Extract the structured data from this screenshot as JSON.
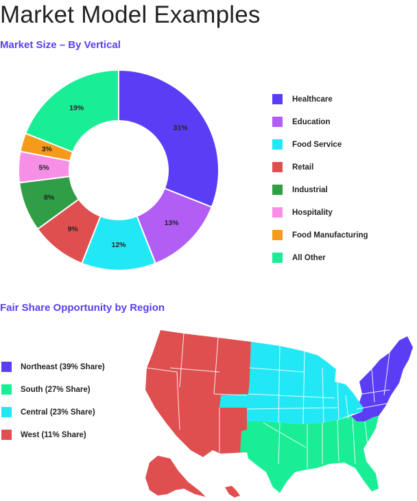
{
  "title": "Market Model Examples",
  "chart_data": [
    {
      "type": "pie",
      "title": "Market Size – By Vertical",
      "donut": true,
      "legend_position": "right",
      "slices": [
        {
          "label": "Healthcare",
          "value": 31,
          "display": "31%",
          "color": "#5b3df5"
        },
        {
          "label": "Education",
          "value": 13,
          "display": "13%",
          "color": "#b25ef5"
        },
        {
          "label": "Food Service",
          "value": 12,
          "display": "12%",
          "color": "#22e8f5"
        },
        {
          "label": "Retail",
          "value": 9,
          "display": "9%",
          "color": "#e04f50"
        },
        {
          "label": "Industrial",
          "value": 8,
          "display": "8%",
          "color": "#2f9e47"
        },
        {
          "label": "Hospitality",
          "value": 5,
          "display": "5%",
          "color": "#f78fe6"
        },
        {
          "label": "Food Manufacturing",
          "value": 3,
          "display": "3%",
          "color": "#f59a1a"
        },
        {
          "label": "All Other",
          "value": 19,
          "display": "19%",
          "color": "#19ee96"
        }
      ]
    },
    {
      "type": "map",
      "title": "Fair Share Opportunity by Region",
      "legend_position": "left",
      "regions": [
        {
          "label": "Northeast (39% Share)",
          "name": "Northeast",
          "share": 39,
          "color": "#5b3df5"
        },
        {
          "label": "South (27% Share)",
          "name": "South",
          "share": 27,
          "color": "#19ee96"
        },
        {
          "label": "Central (23% Share)",
          "name": "Central",
          "share": 23,
          "color": "#22e8f5"
        },
        {
          "label": "West (11% Share)",
          "name": "West",
          "share": 11,
          "color": "#e04f50"
        }
      ]
    }
  ]
}
